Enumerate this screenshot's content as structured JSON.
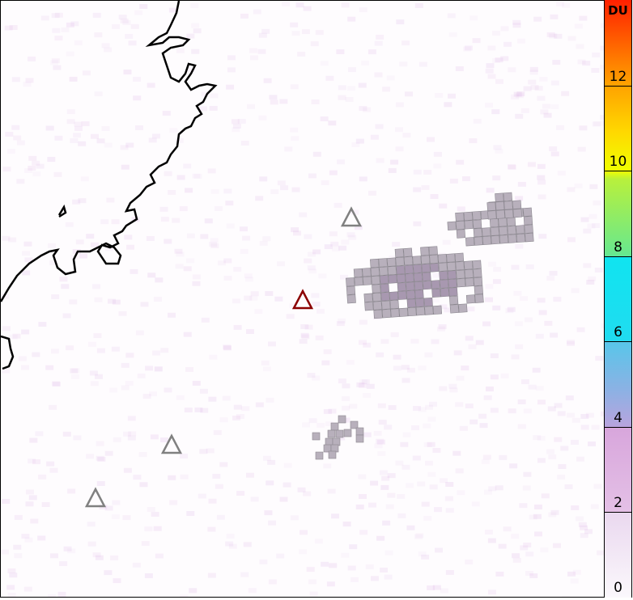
{
  "colorbar": {
    "unit": "DU",
    "min": 0,
    "max": 14,
    "tick_labels": [
      "0",
      "2",
      "4",
      "6",
      "8",
      "10",
      "12"
    ],
    "ticks": [
      2,
      4,
      6,
      8,
      10,
      12
    ]
  },
  "markers": [
    {
      "type": "triangle",
      "color": "#808080"
    },
    {
      "type": "triangle",
      "color": "#808080"
    },
    {
      "type": "triangle",
      "color": "#808080"
    },
    {
      "type": "triangle",
      "color": "#8b0000"
    }
  ],
  "colors": {
    "plume": "#b4a8b8",
    "coastline": "#000000",
    "active_marker": "#8b0000",
    "marker": "#808080"
  }
}
